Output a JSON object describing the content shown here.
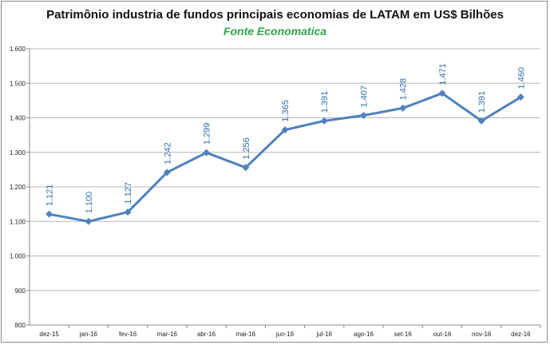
{
  "chart_data": {
    "type": "line",
    "title": "Patrimônio industria de fundos principais economias de LATAM em US$ Bilhões",
    "subtitle": "Fonte Economatica",
    "xlabel": "",
    "ylabel": "",
    "categories": [
      "dez-15",
      "jan-16",
      "fev-16",
      "mar-16",
      "abr-16",
      "mai-16",
      "jun-16",
      "jul-16",
      "ago-16",
      "set-16",
      "out-16",
      "nov-16",
      "dez-16"
    ],
    "series": [
      {
        "values": [
          1121,
          1100,
          1127,
          1242,
          1299,
          1256,
          1365,
          1391,
          1407,
          1428,
          1471,
          1391,
          1460
        ],
        "labels": [
          "1.121",
          "1.100",
          "1.127",
          "1.242",
          "1.299",
          "1.256",
          "1.365",
          "1.391",
          "1.407",
          "1.428",
          "1.471",
          "1.391",
          "1.460"
        ]
      }
    ],
    "ylim": [
      800,
      1600
    ],
    "yticks": [
      800,
      900,
      1000,
      1100,
      1200,
      1300,
      1400,
      1500,
      1600
    ],
    "ytick_labels": [
      "800",
      "900",
      "1.000",
      "1.100",
      "1.200",
      "1.300",
      "1.400",
      "1.500",
      "1.600"
    ],
    "grid": true,
    "legend": "none",
    "colors": {
      "line": "#4f81bd",
      "marker": "#4f81bd",
      "data_label": "#2f6fb0",
      "grid": "#b5b5b5",
      "subtitle": "#2ea84a"
    }
  }
}
